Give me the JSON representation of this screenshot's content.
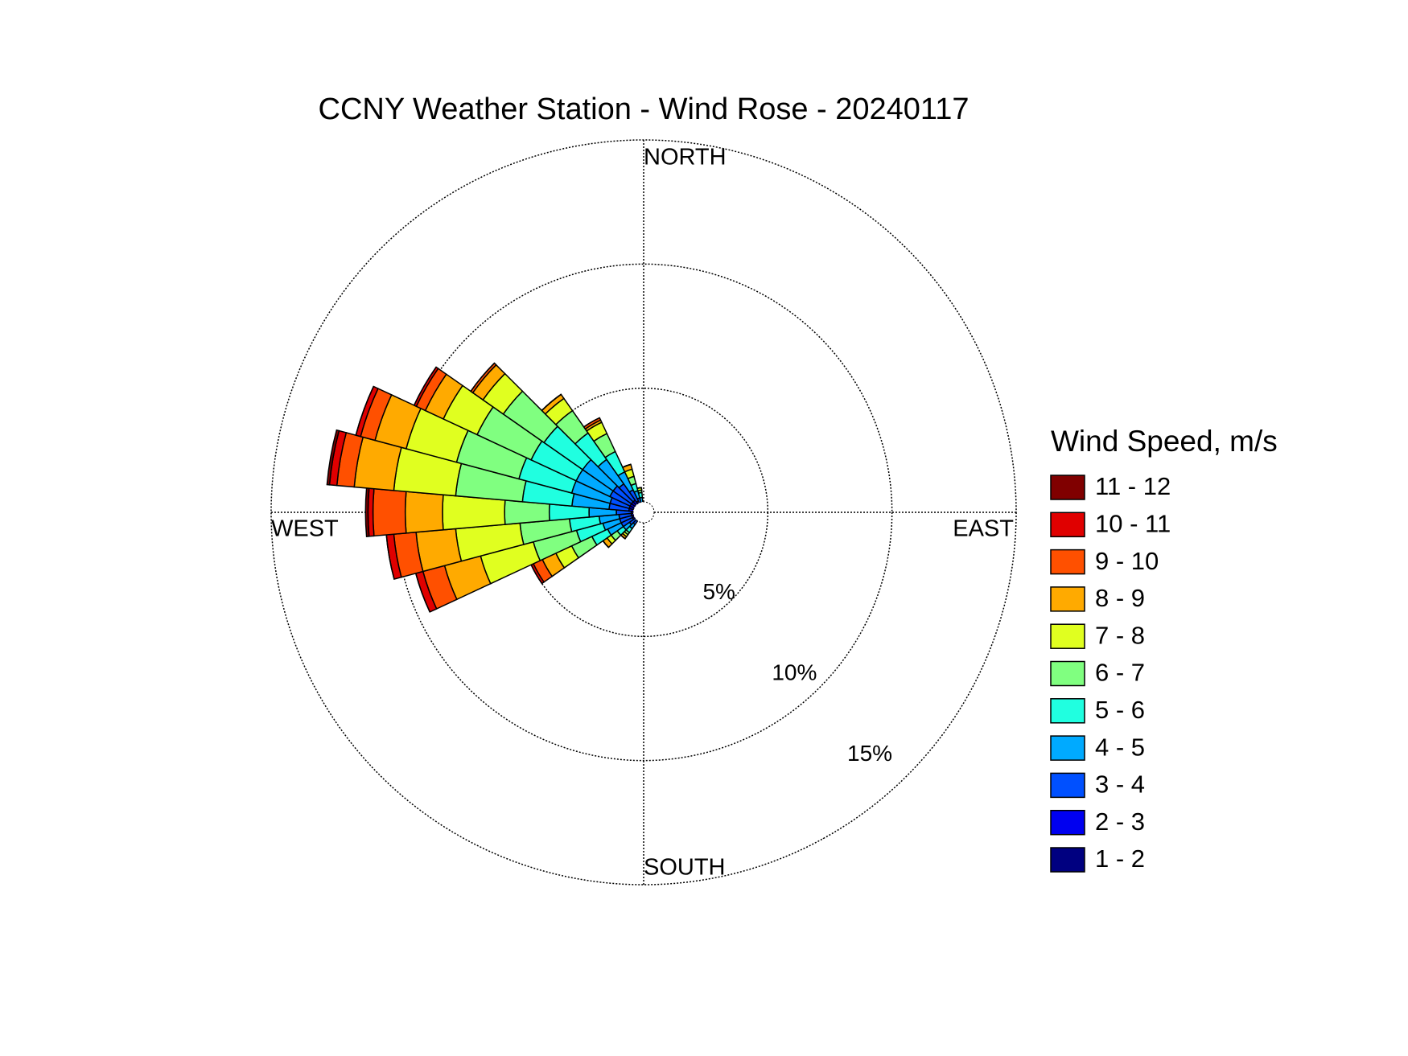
{
  "chart_data": {
    "type": "windrose",
    "title": "CCNY Weather Station - Wind Rose - 20240117",
    "compass_labels": [
      "NORTH",
      "EAST",
      "SOUTH",
      "WEST"
    ],
    "legend_title": "Wind Speed, m/s",
    "x": [
      220,
      230,
      240,
      250,
      260,
      270,
      280,
      290,
      300,
      310,
      320,
      330,
      340,
      350
    ],
    "rlim": [
      0,
      15
    ],
    "rticks": [
      {
        "value": 5,
        "label": "5%"
      },
      {
        "value": 10,
        "label": "10%"
      },
      {
        "value": 15,
        "label": "15%"
      }
    ],
    "series": [
      {
        "name": "1 - 2",
        "color": "#000080",
        "values": [
          0.2,
          0.2,
          0.2,
          0.2,
          0.2,
          0.2,
          0.2,
          0.2,
          0.2,
          0.2,
          0.2,
          0.2,
          0.1,
          0.1
        ]
      },
      {
        "name": "2 - 3",
        "color": "#0000f0",
        "values": [
          0.2,
          0.2,
          0.3,
          0.3,
          0.3,
          0.3,
          0.4,
          0.4,
          0.4,
          0.4,
          0.4,
          0.3,
          0.2,
          0.1
        ]
      },
      {
        "name": "3 - 4",
        "color": "#0050ff",
        "values": [
          0.2,
          0.3,
          0.5,
          0.5,
          0.5,
          0.6,
          0.8,
          0.8,
          0.9,
          0.9,
          0.8,
          0.5,
          0.3,
          0.2
        ]
      },
      {
        "name": "4 - 5",
        "color": "#00aaff",
        "values": [
          0.2,
          0.3,
          0.6,
          0.7,
          0.8,
          1.1,
          1.5,
          1.6,
          1.5,
          1.5,
          1.2,
          0.8,
          0.3,
          0.2
        ]
      },
      {
        "name": "5 - 6",
        "color": "#20ffe0",
        "values": [
          0.2,
          0.3,
          0.7,
          1.1,
          1.2,
          1.6,
          2.0,
          2.2,
          2.0,
          1.9,
          1.3,
          0.9,
          0.3,
          0.2
        ]
      },
      {
        "name": "6 - 7",
        "color": "#80ff80",
        "values": [
          0.1,
          0.3,
          0.9,
          1.8,
          2.0,
          1.8,
          2.7,
          2.6,
          2.4,
          2.0,
          1.1,
          0.8,
          0.3,
          0.1
        ]
      },
      {
        "name": "7 - 8",
        "color": "#e0ff20",
        "values": [
          0.1,
          0.2,
          0.7,
          2.2,
          2.6,
          2.5,
          2.5,
          2.1,
          1.5,
          1.0,
          0.6,
          0.5,
          0.3,
          0.1
        ]
      },
      {
        "name": "8 - 9",
        "color": "#ffaa00",
        "values": [
          0.1,
          0.2,
          0.6,
          1.5,
          1.6,
          1.5,
          1.6,
          1.3,
          0.8,
          0.5,
          0.2,
          0.1,
          0.2,
          0
        ]
      },
      {
        "name": "9 - 10",
        "color": "#ff5000",
        "values": [
          0,
          0,
          0.4,
          0.9,
          0.9,
          1.3,
          0.7,
          0.6,
          0.4,
          0.1,
          0,
          0.1,
          0,
          0
        ]
      },
      {
        "name": "10 - 11",
        "color": "#e00000",
        "values": [
          0,
          0,
          0.1,
          0.3,
          0.3,
          0.2,
          0.3,
          0.2,
          0.1,
          0,
          0,
          0,
          0,
          0
        ]
      },
      {
        "name": "11 - 12",
        "color": "#800000",
        "values": [
          0,
          0,
          0,
          0,
          0,
          0.1,
          0.1,
          0,
          0,
          0,
          0,
          0,
          0,
          0
        ]
      }
    ]
  }
}
